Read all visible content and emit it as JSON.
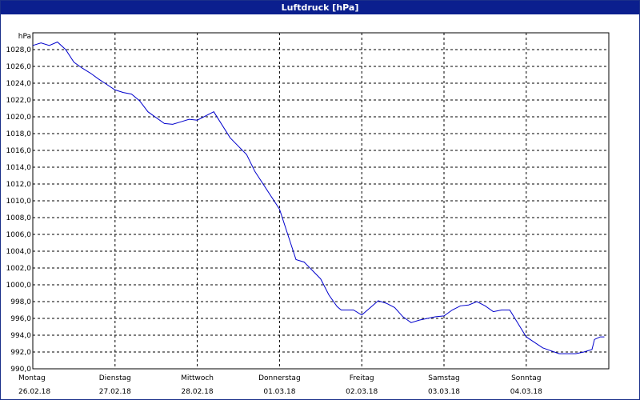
{
  "window": {
    "title": "Luftdruck [hPa]"
  },
  "chart_data": {
    "type": "line",
    "title": "Luftdruck [hPa]",
    "ylabel": "hPa",
    "xlabel": "",
    "grid": true,
    "ylim": [
      990,
      1030
    ],
    "y_ticks": [
      "990,0",
      "992,0",
      "994,0",
      "996,0",
      "998,0",
      "1000,0",
      "1002,0",
      "1004,0",
      "1006,0",
      "1008,0",
      "1010,0",
      "1012,0",
      "1014,0",
      "1016,0",
      "1018,0",
      "1020,0",
      "1022,0",
      "1024,0",
      "1026,0",
      "1028,0"
    ],
    "x_ticks": [
      {
        "day": "Montag",
        "date": "26.02.18"
      },
      {
        "day": "Dienstag",
        "date": "27.02.18"
      },
      {
        "day": "Mittwoch",
        "date": "28.02.18"
      },
      {
        "day": "Donnerstag",
        "date": "01.03.18"
      },
      {
        "day": "Freitag",
        "date": "02.03.18"
      },
      {
        "day": "Samstag",
        "date": "03.03.18"
      },
      {
        "day": "Sonntag",
        "date": "04.03.18"
      }
    ],
    "line_color": "#0000cc",
    "series": [
      {
        "x_unit": "days since 26.02.18 00:00",
        "x": [
          0,
          0.1,
          0.2,
          0.3,
          0.4,
          0.5,
          0.6,
          0.7,
          0.8,
          1.0,
          1.1,
          1.2,
          1.3,
          1.4,
          1.6,
          1.7,
          1.8,
          1.9,
          2.0,
          2.2,
          2.4,
          2.6,
          2.7,
          3.0,
          3.1,
          3.2,
          3.3,
          3.5,
          3.6,
          3.7,
          3.75,
          3.9,
          4.0,
          4.2,
          4.3,
          4.4,
          4.5,
          4.6,
          4.7,
          4.8,
          4.9,
          5.0,
          5.1,
          5.2,
          5.3,
          5.4,
          5.5,
          5.6,
          5.7,
          5.8,
          6.0,
          6.2,
          6.4,
          6.6,
          6.7,
          6.8,
          6.83,
          6.9,
          6.95
        ],
        "values": [
          1028.5,
          1028.8,
          1028.5,
          1028.9,
          1028.0,
          1026.5,
          1025.8,
          1025.2,
          1024.5,
          1023.2,
          1022.9,
          1022.7,
          1021.9,
          1020.6,
          1019.2,
          1019.1,
          1019.4,
          1019.7,
          1019.6,
          1020.6,
          1017.5,
          1015.5,
          1013.5,
          1009.0,
          1006.0,
          1003.0,
          1002.7,
          1000.7,
          998.8,
          997.4,
          997.0,
          997.0,
          996.4,
          998.1,
          997.8,
          997.3,
          996.2,
          995.5,
          995.8,
          996.0,
          996.2,
          996.3,
          997.0,
          997.5,
          997.6,
          998.0,
          997.5,
          996.8,
          997.0,
          997.0,
          993.8,
          992.5,
          991.8,
          991.8,
          992.0,
          992.3,
          993.5,
          993.8,
          993.8
        ]
      }
    ]
  }
}
